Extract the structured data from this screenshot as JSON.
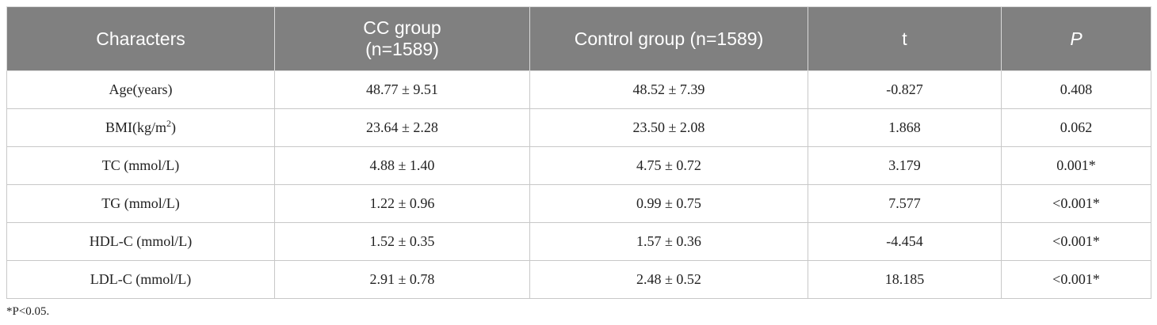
{
  "table": {
    "headers": [
      {
        "line1": "Characters",
        "line2": ""
      },
      {
        "line1": "CC group",
        "line2": "(n=1589)"
      },
      {
        "line1": "Control group (n=1589)",
        "line2": ""
      },
      {
        "line1": "t",
        "line2": ""
      },
      {
        "line1": "P",
        "line2": ""
      }
    ],
    "rows": [
      {
        "label": "Age(years)",
        "label_sup": "",
        "label_after": "",
        "cc": "48.77 ± 9.51",
        "control": "48.52 ± 7.39",
        "t": "-0.827",
        "p": "0.408"
      },
      {
        "label": "BMI(kg/m",
        "label_sup": "2",
        "label_after": ")",
        "cc": "23.64 ± 2.28",
        "control": "23.50 ± 2.08",
        "t": "1.868",
        "p": "0.062"
      },
      {
        "label": "TC (mmol/L)",
        "label_sup": "",
        "label_after": "",
        "cc": "4.88 ± 1.40",
        "control": "4.75 ± 0.72",
        "t": "3.179",
        "p": "0.001*"
      },
      {
        "label": "TG (mmol/L)",
        "label_sup": "",
        "label_after": "",
        "cc": "1.22 ± 0.96",
        "control": "0.99 ± 0.75",
        "t": "7.577",
        "p": "<0.001*"
      },
      {
        "label": "HDL-C (mmol/L)",
        "label_sup": "",
        "label_after": "",
        "cc": "1.52 ± 0.35",
        "control": "1.57 ± 0.36",
        "t": "-4.454",
        "p": "<0.001*"
      },
      {
        "label": "LDL-C (mmol/L)",
        "label_sup": "",
        "label_after": "",
        "cc": "2.91 ± 0.78",
        "control": "2.48 ± 0.52",
        "t": "18.185",
        "p": "<0.001*"
      }
    ]
  },
  "footnote": "*P<0.05.",
  "colors": {
    "header_bg": "#808080",
    "header_text": "#ffffff",
    "border": "#c8c8c8",
    "body_text": "#222222"
  }
}
